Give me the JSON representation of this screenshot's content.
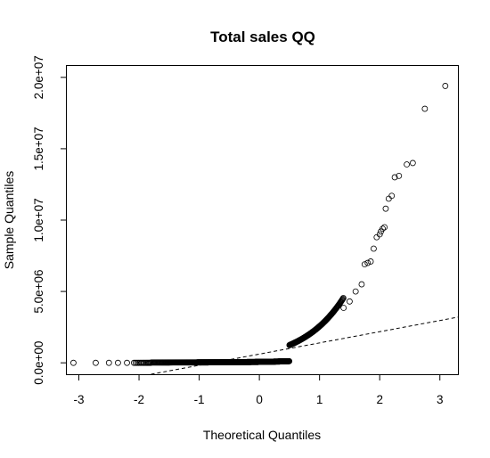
{
  "chart_data": {
    "type": "scatter",
    "title": "Total sales QQ",
    "xlabel": "Theoretical Quantiles",
    "ylabel": "Sample Quantiles",
    "xlim": [
      -3.2,
      3.3
    ],
    "ylim": [
      -800000,
      20800000
    ],
    "grid": false,
    "x_ticks": [
      {
        "value": -3,
        "label": "-3"
      },
      {
        "value": -2,
        "label": "-2"
      },
      {
        "value": -1,
        "label": "-1"
      },
      {
        "value": 0,
        "label": "0"
      },
      {
        "value": 1,
        "label": "1"
      },
      {
        "value": 2,
        "label": "2"
      },
      {
        "value": 3,
        "label": "3"
      }
    ],
    "y_ticks": [
      {
        "value": 0,
        "label": "0.0e+00"
      },
      {
        "value": 5000000,
        "label": "5.0e+06"
      },
      {
        "value": 10000000,
        "label": "1.0e+07"
      },
      {
        "value": 15000000,
        "label": "1.5e+07"
      },
      {
        "value": 20000000,
        "label": "2.0e+07"
      }
    ],
    "reference_line": {
      "style": "dashed",
      "points": [
        [
          -1.8,
          -800000
        ],
        [
          3.3,
          3200000
        ]
      ]
    },
    "highlighted_points": [
      [
        -3.09,
        0
      ],
      [
        -2.72,
        0
      ],
      [
        -2.5,
        0
      ],
      [
        -2.35,
        0
      ],
      [
        -2.2,
        0
      ],
      [
        1.4,
        3850000
      ],
      [
        1.5,
        4300000
      ],
      [
        1.6,
        5000000
      ],
      [
        1.7,
        5500000
      ],
      [
        1.75,
        6900000
      ],
      [
        1.8,
        7000000
      ],
      [
        1.85,
        7100000
      ],
      [
        1.9,
        8000000
      ],
      [
        1.95,
        8800000
      ],
      [
        2.0,
        9000000
      ],
      [
        2.02,
        9200000
      ],
      [
        2.05,
        9400000
      ],
      [
        2.08,
        9500000
      ],
      [
        2.1,
        10800000
      ],
      [
        2.15,
        11500000
      ],
      [
        2.2,
        11700000
      ],
      [
        2.25,
        13000000
      ],
      [
        2.32,
        13100000
      ],
      [
        2.45,
        13900000
      ],
      [
        2.55,
        14000000
      ],
      [
        2.75,
        17800000
      ],
      [
        3.09,
        19400000
      ]
    ],
    "marker": "open-circle",
    "color": "#000000"
  }
}
